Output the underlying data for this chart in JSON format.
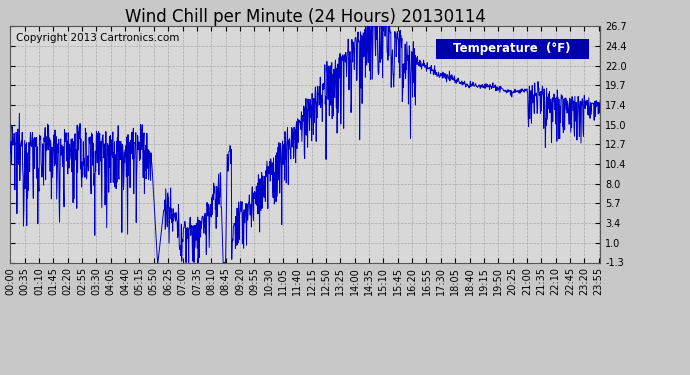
{
  "title": "Wind Chill per Minute (24 Hours) 20130114",
  "copyright_text": "Copyright 2013 Cartronics.com",
  "legend_label": "Temperature  (°F)",
  "line_color": "#0000cc",
  "background_color": "#c8c8c8",
  "plot_bg_color": "#d8d8d8",
  "grid_color": "#aaaaaa",
  "legend_bg": "#0000aa",
  "legend_fg": "#ffffff",
  "yticks": [
    -1.3,
    1.0,
    3.4,
    5.7,
    8.0,
    10.4,
    12.7,
    15.0,
    17.4,
    19.7,
    22.0,
    24.4,
    26.7
  ],
  "ymin": -1.3,
  "ymax": 26.7,
  "xtick_interval_minutes": 35,
  "total_minutes": 1440,
  "title_fontsize": 12,
  "copyright_fontsize": 7.5,
  "tick_fontsize": 7,
  "legend_fontsize": 8.5
}
